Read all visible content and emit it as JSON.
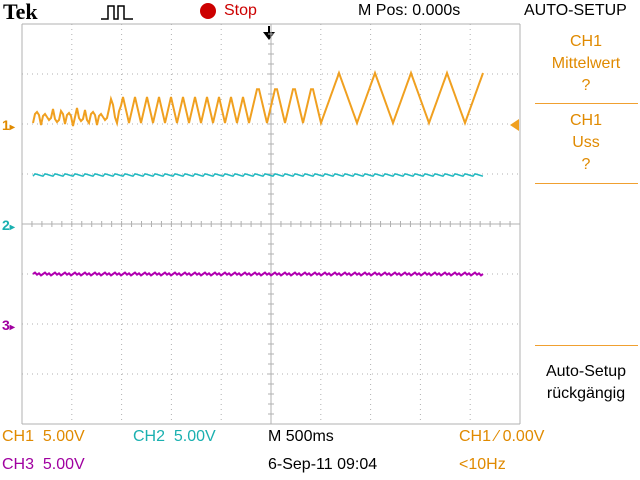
{
  "header": {
    "brand": "Tek",
    "trigger_status_icon": "trigger-pulse-icon",
    "run_state": "Stop",
    "m_pos": "M Pos: 0.000s",
    "menu_title": "AUTO-SETUP"
  },
  "side_menu": {
    "item1": {
      "line1": "CH1",
      "line2": "Mittelwert",
      "line3": "?"
    },
    "item2": {
      "line1": "CH1",
      "line2": "Uss",
      "line3": "?"
    },
    "item3": {
      "line1": "Auto-Setup",
      "line2": "rückgängig"
    }
  },
  "markers": {
    "ch1": "1",
    "ch2": "2",
    "ch3": "3"
  },
  "status": {
    "ch1_label": "CH1",
    "ch1_scale": "5.00V",
    "ch2_label": "CH2",
    "ch2_scale": "5.00V",
    "ch3_label": "CH3",
    "ch3_scale": "5.00V",
    "timebase": "M 500ms",
    "date": "6-Sep-11 09:04",
    "trigger": "CH1 ⁄ 0.00V",
    "frequency": "<10Hz"
  },
  "colors": {
    "ch1": "#f0a020",
    "ch2": "#20b8c0",
    "ch3": "#b000b0",
    "grid": "#b0b0b0"
  }
}
